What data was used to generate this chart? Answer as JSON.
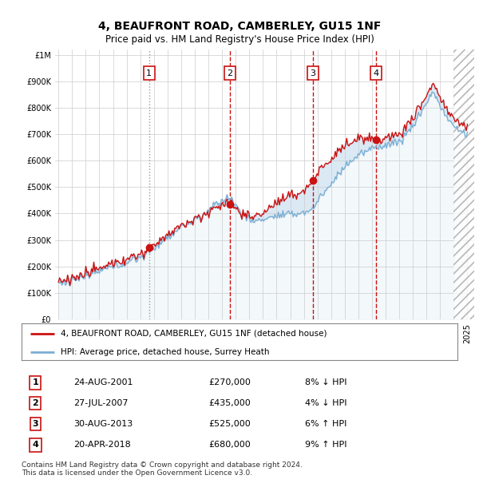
{
  "title": "4, BEAUFRONT ROAD, CAMBERLEY, GU15 1NF",
  "subtitle": "Price paid vs. HM Land Registry's House Price Index (HPI)",
  "ytick_values": [
    0,
    100000,
    200000,
    300000,
    400000,
    500000,
    600000,
    700000,
    800000,
    900000,
    1000000
  ],
  "ylim": [
    0,
    1020000
  ],
  "xlim_start": 1994.75,
  "xlim_end": 2025.5,
  "sales": [
    {
      "date": 2001.65,
      "price": 270000,
      "label": "1"
    },
    {
      "date": 2007.58,
      "price": 435000,
      "label": "2"
    },
    {
      "date": 2013.67,
      "price": 525000,
      "label": "3"
    },
    {
      "date": 2018.3,
      "price": 680000,
      "label": "4"
    }
  ],
  "hpi_color": "#7bafd4",
  "price_color": "#cc1111",
  "vline_color_dotted": "#cc4444",
  "vline_color_dashed": "#cc1111",
  "table_rows": [
    {
      "num": "1",
      "date": "24-AUG-2001",
      "price": "£270,000",
      "pct": "8% ↓ HPI"
    },
    {
      "num": "2",
      "date": "27-JUL-2007",
      "price": "£435,000",
      "pct": "4% ↓ HPI"
    },
    {
      "num": "3",
      "date": "30-AUG-2013",
      "price": "£525,000",
      "pct": "6% ↑ HPI"
    },
    {
      "num": "4",
      "date": "20-APR-2018",
      "price": "£680,000",
      "pct": "9% ↑ HPI"
    }
  ],
  "legend_line1": "4, BEAUFRONT ROAD, CAMBERLEY, GU15 1NF (detached house)",
  "legend_line2": "HPI: Average price, detached house, Surrey Heath",
  "footnote": "Contains HM Land Registry data © Crown copyright and database right 2024.\nThis data is licensed under the Open Government Licence v3.0."
}
